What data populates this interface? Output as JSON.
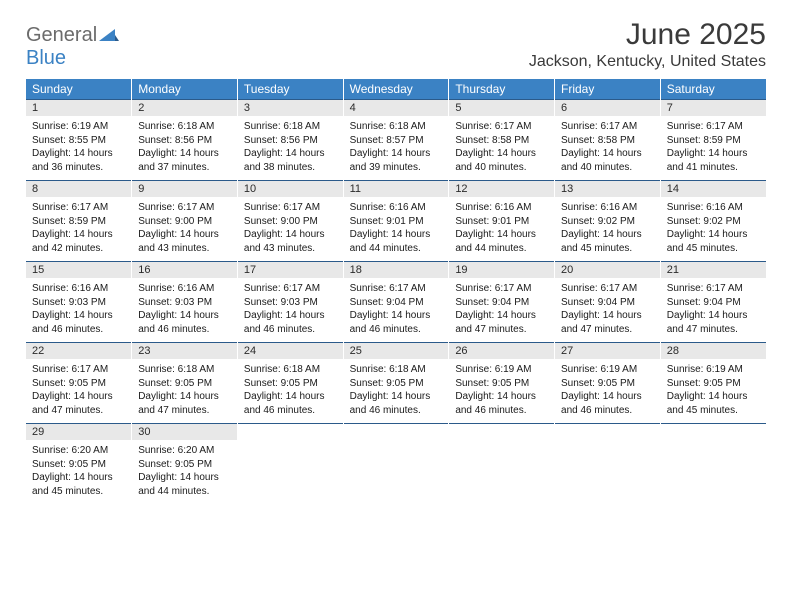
{
  "logo": {
    "part1": "General",
    "part2": "Blue"
  },
  "title": "June 2025",
  "location": "Jackson, Kentucky, United States",
  "colors": {
    "header_bg": "#3b82c4",
    "header_text": "#ffffff",
    "daynum_bg": "#e8e8e8",
    "border_line": "#2b5a8a",
    "logo_gray": "#6b6b6b",
    "logo_blue": "#3b82c4",
    "text": "#1a1a1a"
  },
  "day_headers": [
    "Sunday",
    "Monday",
    "Tuesday",
    "Wednesday",
    "Thursday",
    "Friday",
    "Saturday"
  ],
  "weeks": [
    [
      {
        "n": "1",
        "sr": "6:19 AM",
        "ss": "8:55 PM",
        "dl": "14 hours and 36 minutes."
      },
      {
        "n": "2",
        "sr": "6:18 AM",
        "ss": "8:56 PM",
        "dl": "14 hours and 37 minutes."
      },
      {
        "n": "3",
        "sr": "6:18 AM",
        "ss": "8:56 PM",
        "dl": "14 hours and 38 minutes."
      },
      {
        "n": "4",
        "sr": "6:18 AM",
        "ss": "8:57 PM",
        "dl": "14 hours and 39 minutes."
      },
      {
        "n": "5",
        "sr": "6:17 AM",
        "ss": "8:58 PM",
        "dl": "14 hours and 40 minutes."
      },
      {
        "n": "6",
        "sr": "6:17 AM",
        "ss": "8:58 PM",
        "dl": "14 hours and 40 minutes."
      },
      {
        "n": "7",
        "sr": "6:17 AM",
        "ss": "8:59 PM",
        "dl": "14 hours and 41 minutes."
      }
    ],
    [
      {
        "n": "8",
        "sr": "6:17 AM",
        "ss": "8:59 PM",
        "dl": "14 hours and 42 minutes."
      },
      {
        "n": "9",
        "sr": "6:17 AM",
        "ss": "9:00 PM",
        "dl": "14 hours and 43 minutes."
      },
      {
        "n": "10",
        "sr": "6:17 AM",
        "ss": "9:00 PM",
        "dl": "14 hours and 43 minutes."
      },
      {
        "n": "11",
        "sr": "6:16 AM",
        "ss": "9:01 PM",
        "dl": "14 hours and 44 minutes."
      },
      {
        "n": "12",
        "sr": "6:16 AM",
        "ss": "9:01 PM",
        "dl": "14 hours and 44 minutes."
      },
      {
        "n": "13",
        "sr": "6:16 AM",
        "ss": "9:02 PM",
        "dl": "14 hours and 45 minutes."
      },
      {
        "n": "14",
        "sr": "6:16 AM",
        "ss": "9:02 PM",
        "dl": "14 hours and 45 minutes."
      }
    ],
    [
      {
        "n": "15",
        "sr": "6:16 AM",
        "ss": "9:03 PM",
        "dl": "14 hours and 46 minutes."
      },
      {
        "n": "16",
        "sr": "6:16 AM",
        "ss": "9:03 PM",
        "dl": "14 hours and 46 minutes."
      },
      {
        "n": "17",
        "sr": "6:17 AM",
        "ss": "9:03 PM",
        "dl": "14 hours and 46 minutes."
      },
      {
        "n": "18",
        "sr": "6:17 AM",
        "ss": "9:04 PM",
        "dl": "14 hours and 46 minutes."
      },
      {
        "n": "19",
        "sr": "6:17 AM",
        "ss": "9:04 PM",
        "dl": "14 hours and 47 minutes."
      },
      {
        "n": "20",
        "sr": "6:17 AM",
        "ss": "9:04 PM",
        "dl": "14 hours and 47 minutes."
      },
      {
        "n": "21",
        "sr": "6:17 AM",
        "ss": "9:04 PM",
        "dl": "14 hours and 47 minutes."
      }
    ],
    [
      {
        "n": "22",
        "sr": "6:17 AM",
        "ss": "9:05 PM",
        "dl": "14 hours and 47 minutes."
      },
      {
        "n": "23",
        "sr": "6:18 AM",
        "ss": "9:05 PM",
        "dl": "14 hours and 47 minutes."
      },
      {
        "n": "24",
        "sr": "6:18 AM",
        "ss": "9:05 PM",
        "dl": "14 hours and 46 minutes."
      },
      {
        "n": "25",
        "sr": "6:18 AM",
        "ss": "9:05 PM",
        "dl": "14 hours and 46 minutes."
      },
      {
        "n": "26",
        "sr": "6:19 AM",
        "ss": "9:05 PM",
        "dl": "14 hours and 46 minutes."
      },
      {
        "n": "27",
        "sr": "6:19 AM",
        "ss": "9:05 PM",
        "dl": "14 hours and 46 minutes."
      },
      {
        "n": "28",
        "sr": "6:19 AM",
        "ss": "9:05 PM",
        "dl": "14 hours and 45 minutes."
      }
    ],
    [
      {
        "n": "29",
        "sr": "6:20 AM",
        "ss": "9:05 PM",
        "dl": "14 hours and 45 minutes."
      },
      {
        "n": "30",
        "sr": "6:20 AM",
        "ss": "9:05 PM",
        "dl": "14 hours and 44 minutes."
      },
      null,
      null,
      null,
      null,
      null
    ]
  ],
  "labels": {
    "sunrise": "Sunrise:",
    "sunset": "Sunset:",
    "daylight": "Daylight:"
  }
}
